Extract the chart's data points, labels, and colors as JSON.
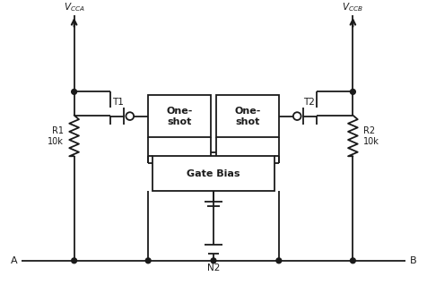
{
  "bg_color": "#ffffff",
  "line_color": "#1a1a1a",
  "line_width": 1.3,
  "fig_width": 4.76,
  "fig_height": 3.18,
  "dpi": 100,
  "vcca_label": "$V_{CCA}$",
  "vccb_label": "$V_{CCB}$",
  "r1_label1": "R1",
  "r1_label2": "10k",
  "r2_label1": "R2",
  "r2_label2": "10k",
  "t1_label": "T1",
  "t2_label": "T2",
  "os_label1": "One-",
  "os_label2": "shot",
  "gb_label": "Gate Bias",
  "n2_label": "N2",
  "a_label": "A",
  "b_label": "B"
}
